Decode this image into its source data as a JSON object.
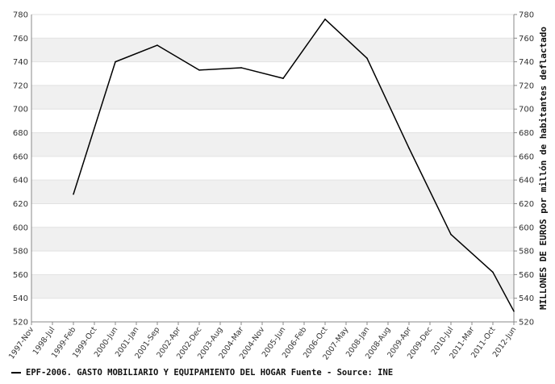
{
  "chart_data": {
    "type": "line",
    "x": [
      "1997-Nov",
      "1998-Jul",
      "1999-Feb",
      "1999-Oct",
      "2000-Jun",
      "2001-Jan",
      "2001-Sep",
      "2002-Apr",
      "2002-Dec",
      "2003-Aug",
      "2004-Mar",
      "2004-Nov",
      "2005-Jun",
      "2006-Feb",
      "2006-Oct",
      "2007-May",
      "2008-Jan",
      "2008-Aug",
      "2009-Apr",
      "2009-Dec",
      "2010-Jul",
      "2011-Mar",
      "2011-Oct",
      "2012-Jun"
    ],
    "series": [
      {
        "name": "EPF-2006. GASTO MOBILIARIO Y EQUIPAMIENTO DEL HOGAR  Fuente - Source: INE",
        "color": "#000000",
        "points": [
          {
            "x": "1999-Feb",
            "y": 628
          },
          {
            "x": "2000-Jun",
            "y": 740
          },
          {
            "x": "2001-Sep",
            "y": 754
          },
          {
            "x": "2002-Dec",
            "y": 733
          },
          {
            "x": "2004-Mar",
            "y": 735
          },
          {
            "x": "2005-Jun",
            "y": 726
          },
          {
            "x": "2006-Oct",
            "y": 776
          },
          {
            "x": "2008-Jan",
            "y": 743
          },
          {
            "x": "2009-Apr",
            "y": 667
          },
          {
            "x": "2010-Jul",
            "y": 594
          },
          {
            "x": "2011-Oct",
            "y": 562
          },
          {
            "x": "2012-Jun",
            "y": 529
          }
        ]
      }
    ],
    "yticks": [
      520,
      540,
      560,
      580,
      600,
      620,
      640,
      660,
      680,
      700,
      720,
      740,
      760,
      780
    ],
    "ylim": [
      520,
      780
    ],
    "ylabel": "MILLONES DE EUROS por millón de habitantes deflactado",
    "grid": "alternating horizontal bands",
    "legend_position": "bottom-left"
  }
}
